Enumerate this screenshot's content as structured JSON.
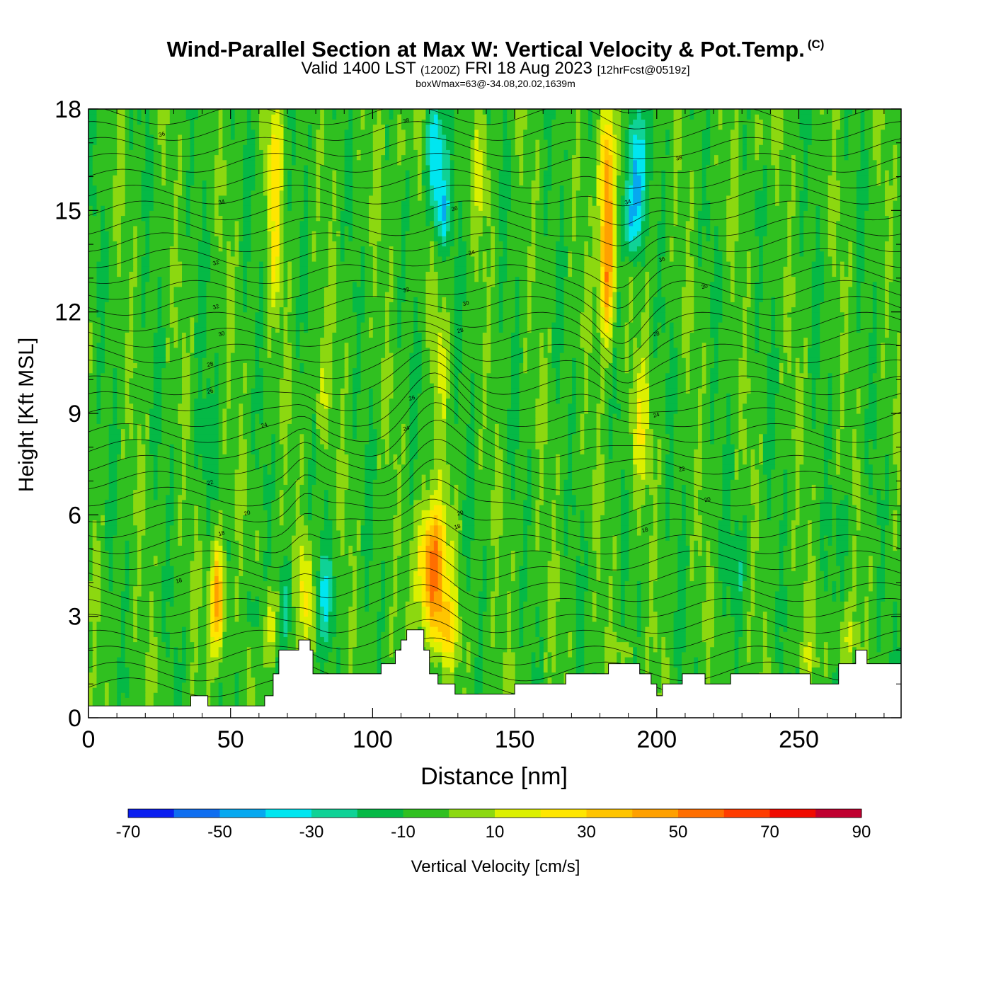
{
  "header": {
    "title_main": "Wind-Parallel Section at Max W: Vertical Velocity & Pot.Temp.",
    "copyright_mark": "(C)",
    "valid_prefix": "Valid 1400 LST",
    "valid_utc": "(1200Z)",
    "valid_date": "FRI 18 Aug 2023",
    "forecast_info": "[12hrFcst@0519z]",
    "box_info": "boxWmax=63@-34.08,20.02,1639m"
  },
  "chart_data": {
    "type": "heatmap",
    "title": "Wind-Parallel Section at Max W: Vertical Velocity & Pot.Temp.",
    "xlabel": "Distance [nm]",
    "ylabel": "Height [Kft MSL]",
    "xlim": [
      0,
      286
    ],
    "ylim": [
      0,
      18
    ],
    "x_ticks": [
      0,
      50,
      100,
      150,
      200,
      250
    ],
    "y_ticks": [
      0,
      3,
      6,
      9,
      12,
      15,
      18
    ],
    "colorbar": {
      "label": "Vertical Velocity [cm/s]",
      "levels": [
        -70,
        -60,
        -50,
        -40,
        -30,
        -20,
        -10,
        0,
        10,
        20,
        30,
        40,
        50,
        60,
        70,
        80,
        90
      ],
      "tick_labels": [
        "-70",
        "-50",
        "-30",
        "-10",
        "10",
        "30",
        "50",
        "70",
        "90"
      ],
      "colors": [
        "#0a1ef0",
        "#0f6ef0",
        "#06a8f0",
        "#00e6f0",
        "#0fd296",
        "#05b946",
        "#30c020",
        "#8cd810",
        "#dcf000",
        "#ffe600",
        "#ffc400",
        "#ffa000",
        "#ff6e00",
        "#ff3c00",
        "#f00a00",
        "#c00030"
      ]
    },
    "background_value": -5,
    "velocity_features": [
      {
        "x": 45.5,
        "y": 3.5,
        "rx": 2.5,
        "ry": 1.6,
        "w": 55
      },
      {
        "x": 64,
        "y": 2.8,
        "rx": 2.5,
        "ry": 1.2,
        "w": 22
      },
      {
        "x": 76.5,
        "y": 3.7,
        "rx": 2.8,
        "ry": 1.6,
        "w": 28
      },
      {
        "x": 70,
        "y": 3.3,
        "rx": 2.0,
        "ry": 1.2,
        "w": -20
      },
      {
        "x": 83.5,
        "y": 3.6,
        "rx": 3.5,
        "ry": 1.3,
        "w": -22
      },
      {
        "x": 58,
        "y": 3.1,
        "rx": 2.0,
        "ry": 0.9,
        "w": -18
      },
      {
        "x": 121,
        "y": 4.4,
        "rx": 5.0,
        "ry": 1.9,
        "w": 63
      },
      {
        "x": 126,
        "y": 2.6,
        "rx": 4.0,
        "ry": 1.0,
        "w": 28
      },
      {
        "x": 182.5,
        "y": 15.5,
        "rx": 2.6,
        "ry": 2.8,
        "w": 60
      },
      {
        "x": 182.5,
        "y": 12.6,
        "rx": 2.6,
        "ry": 1.6,
        "w": 32
      },
      {
        "x": 193,
        "y": 16.2,
        "rx": 3.0,
        "ry": 1.9,
        "w": -42
      },
      {
        "x": 191,
        "y": 14.6,
        "rx": 2.5,
        "ry": 1.0,
        "w": -30
      },
      {
        "x": 122,
        "y": 16.6,
        "rx": 3.0,
        "ry": 1.8,
        "w": -38
      },
      {
        "x": 125,
        "y": 15.0,
        "rx": 3.0,
        "ry": 1.0,
        "w": -24
      },
      {
        "x": 65.5,
        "y": 16.2,
        "rx": 2.8,
        "ry": 2.2,
        "w": 28
      },
      {
        "x": 66,
        "y": 13.2,
        "rx": 2.2,
        "ry": 1.2,
        "w": 16
      },
      {
        "x": 82,
        "y": 9.7,
        "rx": 2.6,
        "ry": 1.6,
        "w": 16
      },
      {
        "x": 124,
        "y": 10.6,
        "rx": 2.5,
        "ry": 1.6,
        "w": 16
      },
      {
        "x": 194,
        "y": 8.6,
        "rx": 3.5,
        "ry": 1.9,
        "w": 20
      },
      {
        "x": 138,
        "y": 16.0,
        "rx": 3.5,
        "ry": 1.5,
        "w": 14
      },
      {
        "x": 110,
        "y": 17.0,
        "rx": 2.5,
        "ry": 1.0,
        "w": 12
      },
      {
        "x": 236,
        "y": 17.2,
        "rx": 3.0,
        "ry": 0.8,
        "w": 12
      },
      {
        "x": 266,
        "y": 2.3,
        "rx": 4.0,
        "ry": 0.8,
        "w": 16
      },
      {
        "x": 253,
        "y": 1.8,
        "rx": 3.0,
        "ry": 0.6,
        "w": 12
      },
      {
        "x": 187,
        "y": 2.0,
        "rx": 5.0,
        "ry": 0.6,
        "w": 10
      },
      {
        "x": 40,
        "y": 8.3,
        "rx": 3.0,
        "ry": 1.5,
        "w": -12
      },
      {
        "x": 228,
        "y": 4.6,
        "rx": 4.0,
        "ry": 1.2,
        "w": -12
      },
      {
        "x": 266,
        "y": 5.6,
        "rx": 3.0,
        "ry": 0.9,
        "w": -12
      }
    ],
    "theta_contour_labels": [
      "18",
      "18",
      "18",
      "18",
      "20",
      "20",
      "20",
      "22",
      "22",
      "24",
      "24",
      "24",
      "26",
      "26",
      "28",
      "28",
      "28",
      "30",
      "30",
      "30",
      "32",
      "32",
      "32",
      "34",
      "34",
      "34",
      "36",
      "36",
      "36",
      "38",
      "38"
    ],
    "terrain_profile": [
      [
        0,
        0.35
      ],
      [
        36,
        0.35
      ],
      [
        36,
        0.65
      ],
      [
        42,
        0.65
      ],
      [
        42,
        0.35
      ],
      [
        62,
        0.35
      ],
      [
        62,
        0.65
      ],
      [
        65,
        0.65
      ],
      [
        65,
        1.3
      ],
      [
        67,
        1.3
      ],
      [
        67,
        2.0
      ],
      [
        74,
        2.0
      ],
      [
        74,
        2.3
      ],
      [
        78,
        2.3
      ],
      [
        78,
        2.0
      ],
      [
        79,
        2.0
      ],
      [
        79,
        1.3
      ],
      [
        103,
        1.3
      ],
      [
        103,
        1.6
      ],
      [
        108,
        1.6
      ],
      [
        108,
        2.0
      ],
      [
        110,
        2.0
      ],
      [
        110,
        2.3
      ],
      [
        112,
        2.3
      ],
      [
        112,
        2.6
      ],
      [
        118,
        2.6
      ],
      [
        118,
        2.0
      ],
      [
        120,
        2.0
      ],
      [
        120,
        1.3
      ],
      [
        123,
        1.3
      ],
      [
        123,
        1.0
      ],
      [
        129,
        1.0
      ],
      [
        129,
        0.7
      ],
      [
        150,
        0.7
      ],
      [
        150,
        1.0
      ],
      [
        168,
        1.0
      ],
      [
        168,
        1.3
      ],
      [
        183,
        1.3
      ],
      [
        183,
        1.6
      ],
      [
        194,
        1.6
      ],
      [
        194,
        1.3
      ],
      [
        198,
        1.3
      ],
      [
        198,
        1.0
      ],
      [
        200,
        1.0
      ],
      [
        200,
        0.65
      ],
      [
        202,
        0.65
      ],
      [
        202,
        1.0
      ],
      [
        209,
        1.0
      ],
      [
        209,
        1.3
      ],
      [
        217,
        1.3
      ],
      [
        217,
        1.0
      ],
      [
        226,
        1.0
      ],
      [
        226,
        1.3
      ],
      [
        254,
        1.3
      ],
      [
        254,
        1.0
      ],
      [
        264,
        1.0
      ],
      [
        264,
        1.6
      ],
      [
        270,
        1.6
      ],
      [
        270,
        2.0
      ],
      [
        274,
        2.0
      ],
      [
        274,
        1.6
      ],
      [
        286,
        1.6
      ]
    ]
  }
}
